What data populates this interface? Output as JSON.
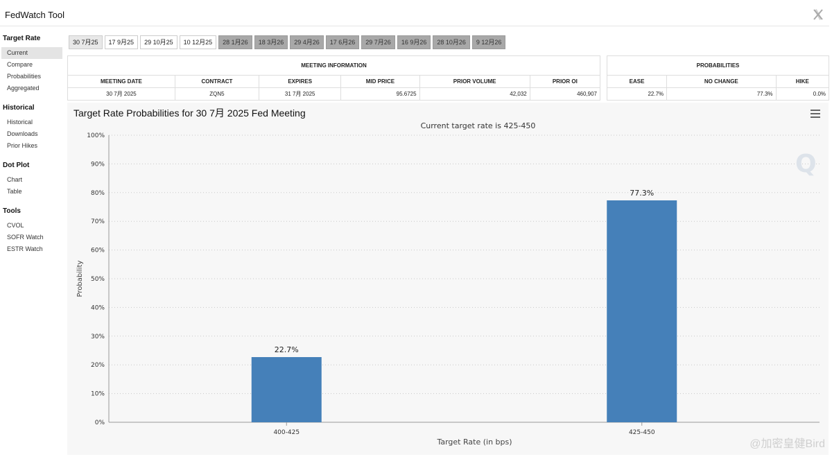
{
  "app": {
    "title": "FedWatch Tool"
  },
  "sidebar": {
    "sections": [
      {
        "heading": "Target Rate",
        "items": [
          "Current",
          "Compare",
          "Probabilities",
          "Aggregated"
        ]
      },
      {
        "heading": "Historical",
        "items": [
          "Historical",
          "Downloads",
          "Prior Hikes"
        ]
      },
      {
        "heading": "Dot Plot",
        "items": [
          "Chart",
          "Table"
        ]
      },
      {
        "heading": "Tools",
        "items": [
          "CVOL",
          "SOFR Watch",
          "ESTR Watch"
        ]
      }
    ],
    "active_item": "Current"
  },
  "meeting_tabs": [
    {
      "label": "30 7月25",
      "state": "selected"
    },
    {
      "label": "17 9月25",
      "state": "normal"
    },
    {
      "label": "29 10月25",
      "state": "normal"
    },
    {
      "label": "10 12月25",
      "state": "normal"
    },
    {
      "label": "28 1月26",
      "state": "future"
    },
    {
      "label": "18 3月26",
      "state": "future"
    },
    {
      "label": "29 4月26",
      "state": "future"
    },
    {
      "label": "17 6月26",
      "state": "future"
    },
    {
      "label": "29 7月26",
      "state": "future"
    },
    {
      "label": "16 9月26",
      "state": "future"
    },
    {
      "label": "28 10月26",
      "state": "future"
    },
    {
      "label": "9 12月26",
      "state": "future"
    }
  ],
  "meeting_info": {
    "title": "MEETING INFORMATION",
    "headers": [
      "MEETING DATE",
      "CONTRACT",
      "EXPIRES",
      "MID PRICE",
      "PRIOR VOLUME",
      "PRIOR OI"
    ],
    "values": [
      "30 7月 2025",
      "ZQN5",
      "31 7月 2025",
      "95.6725",
      "42,032",
      "460,907"
    ]
  },
  "probabilities": {
    "title": "PROBABILITIES",
    "headers": [
      "EASE",
      "NO CHANGE",
      "HIKE"
    ],
    "values": [
      "22.7%",
      "77.3%",
      "0.0%"
    ]
  },
  "chart_panel": {
    "title": "Target Rate Probabilities for 30 7月 2025 Fed Meeting"
  },
  "chart_data": {
    "type": "bar",
    "subtitle": "Current target rate is 425-450",
    "categories": [
      "400-425",
      "425-450"
    ],
    "values": [
      22.7,
      77.3
    ],
    "data_labels": [
      "22.7%",
      "77.3%"
    ],
    "xlabel": "Target Rate (in bps)",
    "ylabel": "Probability",
    "ylim": [
      0,
      100
    ],
    "yticks": [
      0,
      10,
      20,
      30,
      40,
      50,
      60,
      70,
      80,
      90,
      100
    ],
    "ytick_suffix": "%",
    "grid": true,
    "bar_color": "#4580b9"
  },
  "watermark": {
    "text": "@加密皇健Bird"
  }
}
